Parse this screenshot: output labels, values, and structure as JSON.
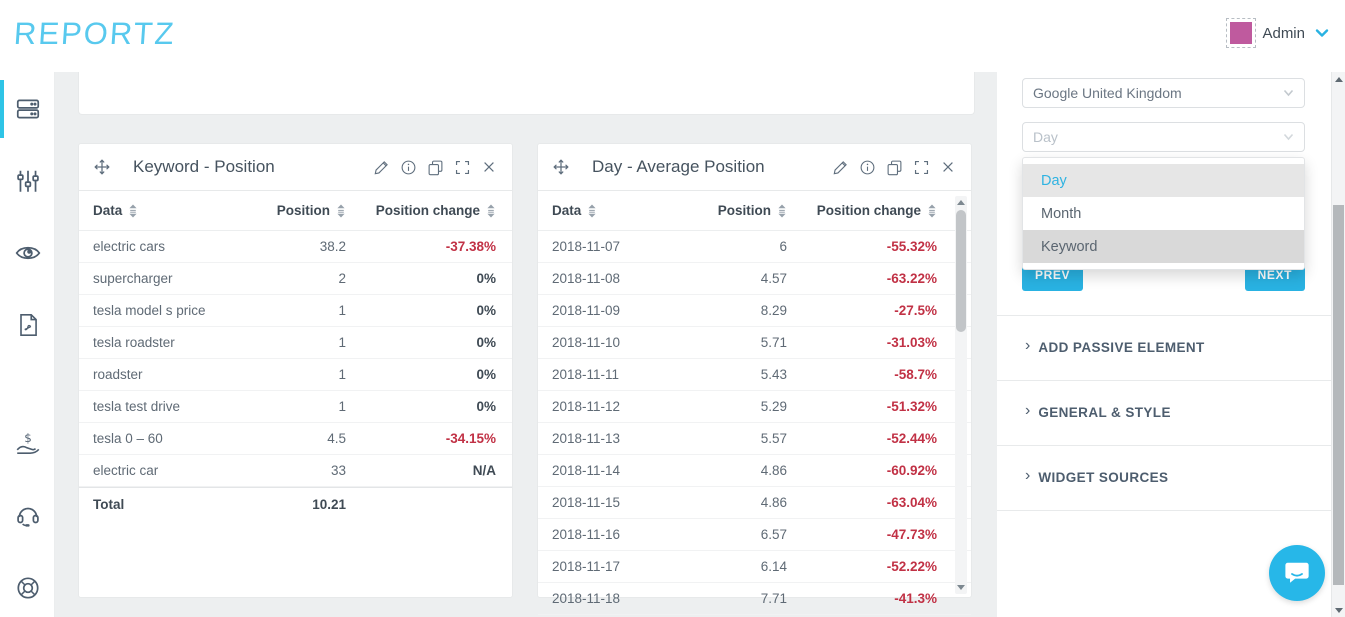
{
  "header": {
    "logo": "REPORTZ",
    "user_name": "Admin"
  },
  "sidebar": {
    "icons": [
      "widgets",
      "filters",
      "visibility",
      "pdf-export",
      "billing",
      "support",
      "help"
    ]
  },
  "widgets": [
    {
      "title": "Keyword - Position",
      "columns": [
        "Data",
        "Position",
        "Position change"
      ],
      "rows": [
        {
          "data": "electric cars",
          "position": "38.2",
          "change": "-37.38%"
        },
        {
          "data": "supercharger",
          "position": "2",
          "change": "0%"
        },
        {
          "data": "tesla model s price",
          "position": "1",
          "change": "0%"
        },
        {
          "data": "tesla roadster",
          "position": "1",
          "change": "0%"
        },
        {
          "data": "roadster",
          "position": "1",
          "change": "0%"
        },
        {
          "data": "tesla test drive",
          "position": "1",
          "change": "0%"
        },
        {
          "data": "tesla 0 – 60",
          "position": "4.5",
          "change": "-34.15%"
        },
        {
          "data": "electric car",
          "position": "33",
          "change": "N/A"
        }
      ],
      "total_label": "Total",
      "total_value": "10.21"
    },
    {
      "title": "Day - Average Position",
      "columns": [
        "Data",
        "Position",
        "Position change"
      ],
      "rows": [
        {
          "data": "2018-11-07",
          "position": "6",
          "change": "-55.32%"
        },
        {
          "data": "2018-11-08",
          "position": "4.57",
          "change": "-63.22%"
        },
        {
          "data": "2018-11-09",
          "position": "8.29",
          "change": "-27.5%"
        },
        {
          "data": "2018-11-10",
          "position": "5.71",
          "change": "-31.03%"
        },
        {
          "data": "2018-11-11",
          "position": "5.43",
          "change": "-58.7%"
        },
        {
          "data": "2018-11-12",
          "position": "5.29",
          "change": "-51.32%"
        },
        {
          "data": "2018-11-13",
          "position": "5.57",
          "change": "-52.44%"
        },
        {
          "data": "2018-11-14",
          "position": "4.86",
          "change": "-60.92%"
        },
        {
          "data": "2018-11-15",
          "position": "4.86",
          "change": "-63.04%"
        },
        {
          "data": "2018-11-16",
          "position": "6.57",
          "change": "-47.73%"
        },
        {
          "data": "2018-11-17",
          "position": "6.14",
          "change": "-52.22%"
        },
        {
          "data": "2018-11-18",
          "position": "7.71",
          "change": "-41.3%"
        }
      ]
    }
  ],
  "panel": {
    "source_select_value": "Google United Kingdom",
    "group_select_placeholder": "Day",
    "dropdown_options": [
      "Day",
      "Month",
      "Keyword"
    ],
    "dropdown_selected": "Day",
    "dropdown_hovered": "Keyword",
    "prev_label": "PREV",
    "next_label": "NEXT",
    "sections": [
      "ADD PASSIVE ELEMENT",
      "GENERAL & STYLE",
      "WIDGET SOURCES"
    ]
  },
  "colors": {
    "accent_cyan": "#29b2e2",
    "negative_red": "#c13145",
    "logo_cyan": "#58c9ee",
    "avatar_pink": "#bf5a9e",
    "active_sidebar_bar": "#2ec4e6"
  }
}
